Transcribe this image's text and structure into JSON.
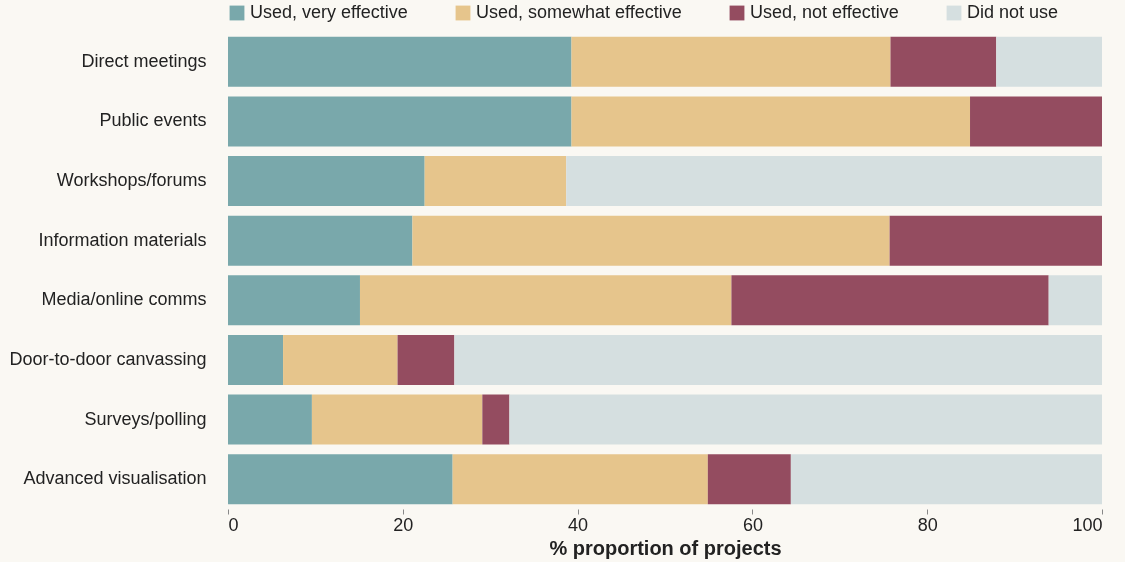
{
  "chart_data": {
    "type": "bar",
    "orientation": "horizontal",
    "stacked": true,
    "categories": [
      "Direct meetings",
      "Public events",
      "Workshops/forums",
      "Information materials",
      "Media/online comms",
      "Door-to-door canvassing",
      "Surveys/polling",
      "Advanced visualisation"
    ],
    "series": [
      {
        "name": "Used, very effective",
        "color": "#79a8ab",
        "values": [
          39.3,
          39.3,
          22.5,
          21.1,
          15.1,
          6.3,
          9.6,
          25.7
        ]
      },
      {
        "name": "Used, somewhat effective",
        "color": "#e6c58c",
        "values": [
          36.5,
          45.6,
          16.2,
          54.6,
          42.5,
          13.1,
          19.5,
          29.2
        ]
      },
      {
        "name": "Used, not effective",
        "color": "#944c60",
        "values": [
          12.1,
          15.1,
          0,
          24.3,
          36.3,
          6.5,
          3.1,
          9.5
        ]
      },
      {
        "name": "Did not use",
        "color": "#d5dfe0",
        "values": [
          12.1,
          0,
          61.3,
          0,
          6.1,
          74.1,
          67.8,
          35.6
        ]
      }
    ],
    "xlim": [
      0,
      100
    ],
    "xticks": [
      0,
      20,
      40,
      60,
      80,
      100
    ],
    "xlabel": "% proportion of projects",
    "grid": false,
    "legend": "top"
  }
}
